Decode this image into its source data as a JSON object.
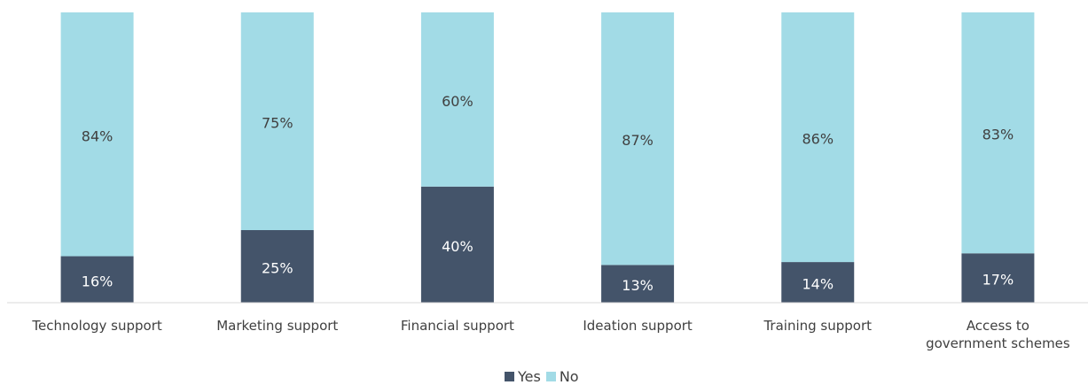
{
  "chart_data": {
    "type": "stacked_bar",
    "categories": [
      "Technology support",
      "Marketing support",
      "Financial support",
      "Ideation support",
      "Training support",
      "Access to\ngovernment schemes"
    ],
    "series": [
      {
        "name": "Yes",
        "color": "#44546a",
        "values": [
          16,
          25,
          40,
          13,
          14,
          17
        ],
        "value_labels": [
          "16%",
          "25%",
          "40%",
          "13%",
          "14%",
          "17%"
        ]
      },
      {
        "name": "No",
        "color": "#a2dbe6",
        "values": [
          84,
          75,
          60,
          87,
          86,
          83
        ],
        "value_labels": [
          "84%",
          "75%",
          "60%",
          "87%",
          "86%",
          "83%"
        ]
      }
    ],
    "ylim": [
      0,
      100
    ],
    "legend": "bottom"
  }
}
